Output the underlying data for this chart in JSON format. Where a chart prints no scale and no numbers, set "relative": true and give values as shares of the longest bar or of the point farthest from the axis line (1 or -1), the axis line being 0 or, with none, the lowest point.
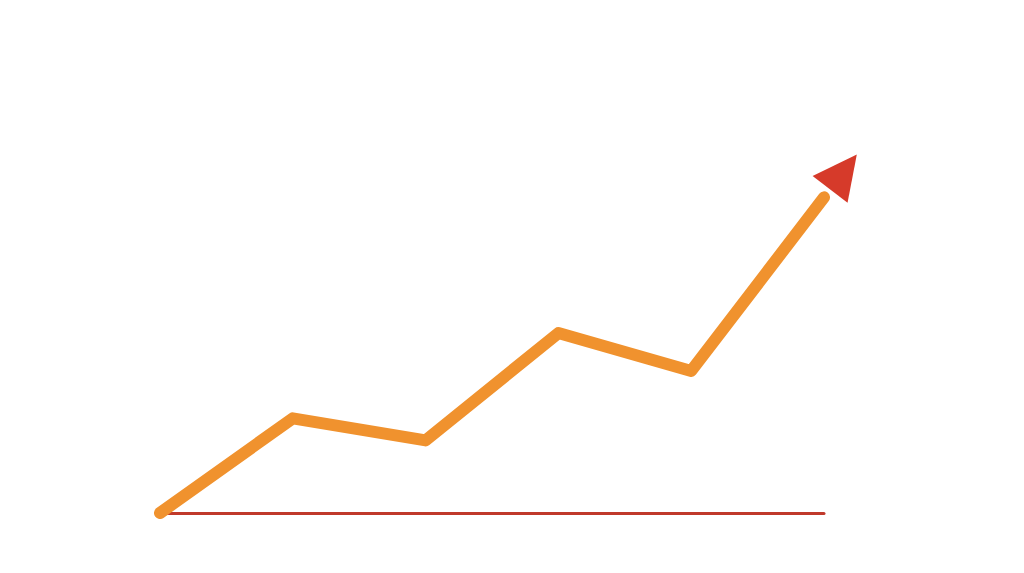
{
  "chart_data": {
    "type": "line",
    "relative": true,
    "categories": [
      null,
      null,
      null,
      null,
      null,
      null
    ],
    "series": [
      {
        "color": "#f0922e",
        "values": [
          0,
          0.3,
          0.23,
          0.57,
          0.45,
          1
        ]
      }
    ]
  }
}
